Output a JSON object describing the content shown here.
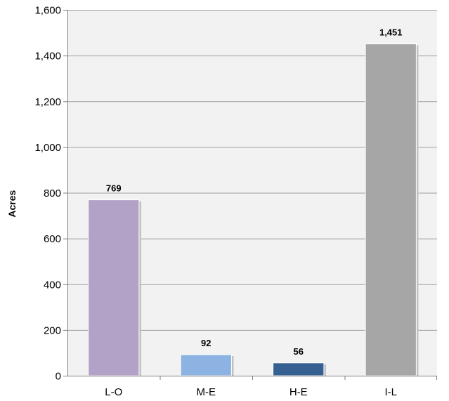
{
  "chart_data": {
    "type": "bar",
    "title": "",
    "xlabel": "",
    "ylabel": "Acres",
    "categories": [
      "L-O",
      "M-E",
      "H-E",
      "I-L"
    ],
    "values": [
      769,
      92,
      56,
      1451
    ],
    "data_labels": [
      "769",
      "92",
      "56",
      "1,451"
    ],
    "bar_colors": [
      "#b3a2c7",
      "#8db3e2",
      "#376092",
      "#a6a6a6"
    ],
    "ylim": [
      0,
      1600
    ],
    "y_ticks": [
      0,
      200,
      400,
      600,
      800,
      1000,
      1200,
      1400,
      1600
    ],
    "y_tick_labels": [
      "0",
      "200",
      "400",
      "600",
      "800",
      "1,000",
      "1,200",
      "1,400",
      "1,600"
    ],
    "grid": true,
    "legend": "none",
    "plot_background": "#f2f2f2",
    "gridline_color": "#a0a0a0"
  }
}
